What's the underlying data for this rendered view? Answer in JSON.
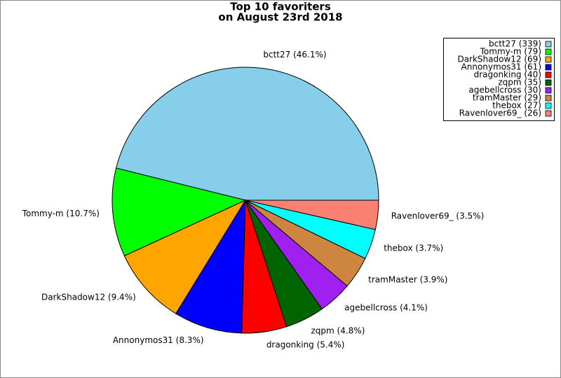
{
  "chart_data": {
    "type": "pie",
    "title": "Top 10 favoriters",
    "subtitle": "on August 23rd 2018",
    "categories": [
      "bctt27 (339)",
      "Tommy-m (79)",
      "DarkShadow12 (69)",
      "Annonymos31 (61)",
      "dragonking (40)",
      "zqpm (35)",
      "agebellcross (30)",
      "tramMaster (29)",
      "thebox (27)",
      "Ravenlover69_ (26)"
    ],
    "values": [
      339,
      79,
      69,
      61,
      40,
      35,
      30,
      29,
      27,
      26
    ],
    "slice_labels": [
      "bctt27 (46.1%)",
      "Tommy-m (10.7%)",
      "DarkShadow12 (9.4%)",
      "Annonymos31 (8.3%)",
      "dragonking (5.4%)",
      "zqpm (4.8%)",
      "agebellcross (4.1%)",
      "tramMaster (3.9%)",
      "thebox (3.7%)",
      "Ravenlover69_ (3.5%)"
    ],
    "colors": [
      "#87ceeb",
      "#00ff00",
      "#ffa500",
      "#0000ff",
      "#ff0000",
      "#006400",
      "#a020f0",
      "#cd853f",
      "#00ffff",
      "#fa8072"
    ],
    "legend": "upper right"
  }
}
